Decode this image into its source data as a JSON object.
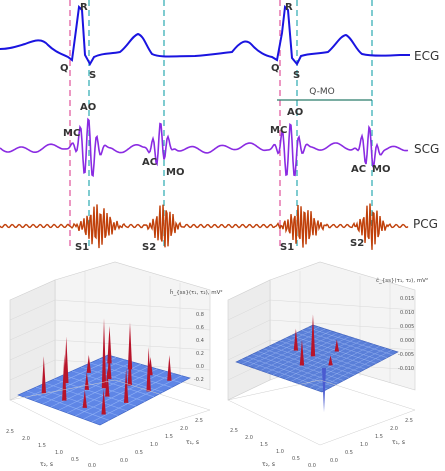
{
  "signals": {
    "ecg": {
      "name": "ECG",
      "color": "#1a14e0",
      "peaks": [
        "Q",
        "R",
        "S"
      ],
      "interval": "Q-MO"
    },
    "scg": {
      "name": "SCG",
      "color": "#8a2be2",
      "peaks": [
        "AO",
        "MC",
        "AC",
        "MO"
      ]
    },
    "pcg": {
      "name": "PCG",
      "color": "#c0400a",
      "peaks": [
        "S1",
        "S2"
      ]
    }
  },
  "markers": {
    "pink": "#e0529a",
    "cyan": "#2aa9b0"
  },
  "plot_left": {
    "zlabel": "ĥ_{ss}(τ₁, τ₂), mV²",
    "xlabel": "τ₂, s",
    "ylabel": "τ₁, s",
    "x_ticks": [
      "2.5",
      "2.0",
      "1.5",
      "1.0",
      "0.5",
      "0.0"
    ],
    "y_ticks": [
      "0.0",
      "0.5",
      "1.0",
      "1.5",
      "2.0",
      "2.5"
    ],
    "z_ticks": [
      "0.8",
      "0.6",
      "0.4",
      "0.2",
      "0.0",
      "-0.2"
    ]
  },
  "plot_right": {
    "zlabel": "ĉ_{ss}(τ₁, τ₂), mV²",
    "xlabel": "τ₂, s",
    "ylabel": "τ₁, s",
    "x_ticks": [
      "2.5",
      "2.0",
      "1.5",
      "1.0",
      "0.5",
      "0.0"
    ],
    "y_ticks": [
      "0.0",
      "0.5",
      "1.0",
      "1.5",
      "2.0",
      "2.5"
    ],
    "z_ticks": [
      "0.015",
      "0.010",
      "0.005",
      "0.000",
      "-0.005",
      "-0.010"
    ]
  }
}
